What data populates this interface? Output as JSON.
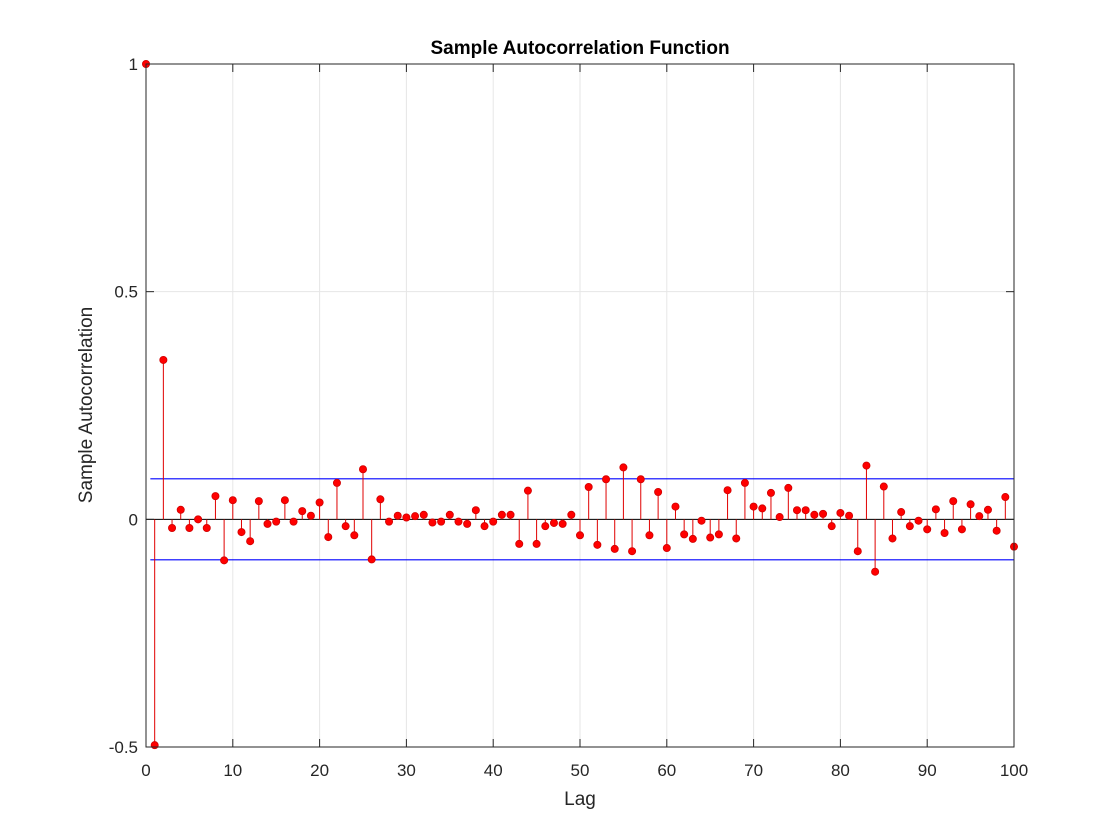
{
  "chart_data": {
    "type": "stem",
    "title": "Sample Autocorrelation Function",
    "xlabel": "Lag",
    "ylabel": "Sample Autocorrelation",
    "xlim": [
      0,
      100
    ],
    "ylim": [
      -0.5,
      1
    ],
    "grid": true,
    "xticks": [
      0,
      10,
      20,
      30,
      40,
      50,
      60,
      70,
      80,
      90,
      100
    ],
    "xtick_labels": [
      "0",
      "10",
      "20",
      "30",
      "40",
      "50",
      "60",
      "70",
      "80",
      "90",
      "100"
    ],
    "yticks": [
      -0.5,
      0,
      0.5,
      1
    ],
    "ytick_labels": [
      "-0.5",
      "0",
      "0.5",
      "1"
    ],
    "confidence_bounds": [
      0.089,
      -0.089
    ],
    "colors": {
      "stem": "#e00000",
      "marker": "#ff0000",
      "bounds": "#0000ff",
      "zero_line": "#000000",
      "grid": "#e6e6e6"
    },
    "lags": [
      0,
      1,
      2,
      3,
      4,
      5,
      6,
      7,
      8,
      9,
      10,
      11,
      12,
      13,
      14,
      15,
      16,
      17,
      18,
      19,
      20,
      21,
      22,
      23,
      24,
      25,
      26,
      27,
      28,
      29,
      30,
      31,
      32,
      33,
      34,
      35,
      36,
      37,
      38,
      39,
      40,
      41,
      42,
      43,
      44,
      45,
      46,
      47,
      48,
      49,
      50,
      51,
      52,
      53,
      54,
      55,
      56,
      57,
      58,
      59,
      60,
      61,
      62,
      63,
      64,
      65,
      66,
      67,
      68,
      69,
      70,
      71,
      72,
      73,
      74,
      75,
      76,
      77,
      78,
      79,
      80,
      81,
      82,
      83,
      84,
      85,
      86,
      87,
      88,
      89,
      90,
      91,
      92,
      93,
      94,
      95,
      96,
      97,
      98,
      99,
      100
    ],
    "values": [
      1.0,
      -0.496,
      0.35,
      -0.019,
      0.021,
      -0.019,
      0.0,
      -0.019,
      0.051,
      -0.09,
      0.042,
      -0.028,
      -0.048,
      0.04,
      -0.01,
      -0.005,
      0.042,
      -0.005,
      0.018,
      0.008,
      0.037,
      -0.039,
      0.08,
      -0.015,
      -0.035,
      0.11,
      -0.088,
      0.044,
      -0.005,
      0.008,
      0.004,
      0.007,
      0.01,
      -0.007,
      -0.005,
      0.01,
      -0.005,
      -0.01,
      0.02,
      -0.015,
      -0.005,
      0.01,
      0.01,
      -0.054,
      0.063,
      -0.054,
      -0.015,
      -0.008,
      -0.01,
      0.01,
      -0.035,
      0.071,
      -0.056,
      0.088,
      -0.065,
      0.114,
      -0.07,
      0.088,
      -0.035,
      0.06,
      -0.063,
      0.028,
      -0.033,
      -0.043,
      -0.003,
      -0.04,
      -0.033,
      0.064,
      -0.042,
      0.08,
      0.028,
      0.024,
      0.058,
      0.005,
      0.069,
      0.02,
      0.02,
      0.01,
      0.012,
      -0.015,
      0.014,
      0.008,
      -0.07,
      0.118,
      -0.115,
      0.072,
      -0.042,
      0.016,
      -0.015,
      -0.003,
      -0.022,
      0.022,
      -0.03,
      0.04,
      -0.022,
      0.033,
      0.007,
      0.021,
      -0.025,
      0.049,
      -0.06
    ]
  }
}
